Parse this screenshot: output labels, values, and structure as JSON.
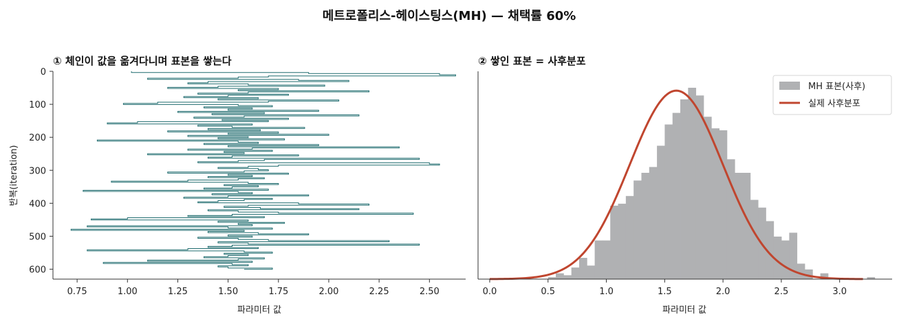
{
  "suptitle": "메트로폴리스-헤이스팅스(MH) — 채택률 60%",
  "colors": {
    "trace": "#1e6b6e",
    "hist": "#b0b1b3",
    "curve": "#c0462f",
    "axis": "#333333"
  },
  "chart_data": [
    {
      "type": "line",
      "title": "① 체인이 값을 옮겨다니며 표본을 쌓는다",
      "xlabel": "파라미터 값",
      "ylabel": "반복(iteration)",
      "xlim": [
        0.63,
        2.68
      ],
      "ylim": [
        0,
        630
      ],
      "y_inverted": true,
      "xticks": [
        "0.75",
        "1.00",
        "1.25",
        "1.50",
        "1.75",
        "2.00",
        "2.25",
        "2.50"
      ],
      "yticks": [
        "0",
        "100",
        "200",
        "300",
        "400",
        "500",
        "600"
      ],
      "grid": false,
      "series": [
        {
          "iteration_range": [
            0,
            600
          ],
          "values": [
            1.02,
            1.9,
            2.55,
            2.63,
            1.7,
            1.55,
            1.1,
            1.85,
            2.1,
            1.4,
            1.3,
            1.6,
            1.98,
            1.45,
            1.2,
            1.75,
            1.55,
            2.2,
            1.6,
            1.35,
            1.8,
            1.5,
            1.28,
            1.65,
            1.45,
            2.05,
            1.7,
            1.15,
            0.98,
            1.55,
            1.72,
            1.38,
            1.62,
            1.5,
            1.95,
            1.25,
            1.68,
            1.42,
            2.15,
            1.58,
            1.33,
            1.8,
            1.47,
            1.7,
            1.05,
            0.9,
            1.62,
            1.35,
            1.52,
            1.88,
            1.4,
            1.66,
            1.2,
            1.75,
            1.5,
            2.0,
            1.3,
            1.6,
            1.45,
            1.78,
            0.85,
            1.55,
            1.65,
            1.38,
            1.95,
            1.5,
            2.35,
            1.62,
            1.3,
            1.72,
            1.48,
            1.58,
            1.1,
            1.85,
            1.52,
            1.4,
            2.45,
            1.68,
            1.55,
            1.35,
            2.5,
            2.55,
            1.75,
            1.6,
            1.45,
            1.65,
            1.7,
            1.58,
            1.2,
            1.8,
            1.5,
            1.62,
            1.4,
            1.68,
            1.55,
            1.3,
            0.92,
            1.6,
            1.75,
            1.48,
            1.65,
            1.52,
            1.38,
            1.7,
            0.78,
            1.55,
            1.62,
            1.42,
            1.9,
            1.5,
            1.28,
            1.72,
            1.58,
            1.45,
            1.35,
            1.85,
            2.2,
            1.6,
            1.48,
            1.66,
            2.15,
            1.4,
            1.55,
            1.75,
            2.42,
            1.52,
            1.3,
            1.68,
            1.0,
            0.82,
            1.6,
            1.45,
            1.78,
            1.55,
            1.62,
            0.8,
            1.5,
            1.72,
            0.72,
            1.58,
            1.4,
            1.65,
            1.9,
            1.5,
            1.62,
            1.35,
            1.55,
            1.7,
            2.3,
            1.45,
            1.6,
            2.45,
            1.52,
            1.4,
            1.65,
            1.3,
            0.8,
            1.58,
            1.72,
            1.48,
            1.6,
            1.5,
            1.38,
            1.68,
            1.55,
            1.1,
            1.62,
            0.88,
            1.52,
            1.6,
            1.45,
            1.5,
            1.72,
            1.58
          ],
          "color": "#1e6b6e"
        }
      ]
    },
    {
      "type": "bar",
      "title": "② 쌓인 표본 = 사후분포",
      "xlabel": "파라미터 값",
      "ylabel": "",
      "xlim": [
        -0.1,
        3.45
      ],
      "ylim": [
        0,
        1.075
      ],
      "xticks": [
        "0.0",
        "0.5",
        "1.0",
        "1.5",
        "2.0",
        "2.5",
        "3.0"
      ],
      "grid": false,
      "legend_position": "top-right",
      "histogram": {
        "name": "MH 표본(사후)",
        "bin_start": 0.5,
        "bin_width": 0.0667,
        "density": [
          0.01,
          0.03,
          0.02,
          0.06,
          0.11,
          0.07,
          0.2,
          0.2,
          0.38,
          0.39,
          0.43,
          0.51,
          0.55,
          0.58,
          0.69,
          0.8,
          0.86,
          0.93,
          0.99,
          0.95,
          0.84,
          0.78,
          0.77,
          0.62,
          0.55,
          0.55,
          0.41,
          0.37,
          0.3,
          0.22,
          0.2,
          0.24,
          0.08,
          0.05,
          0.0,
          0.03,
          0.0,
          0.0,
          0.0,
          0.0,
          0.0,
          0.01,
          0.0
        ]
      },
      "curve": {
        "name": "실제 사후분포",
        "mean": 1.6,
        "sd": 0.4,
        "x_range": [
          0.0,
          3.2
        ]
      }
    }
  ]
}
